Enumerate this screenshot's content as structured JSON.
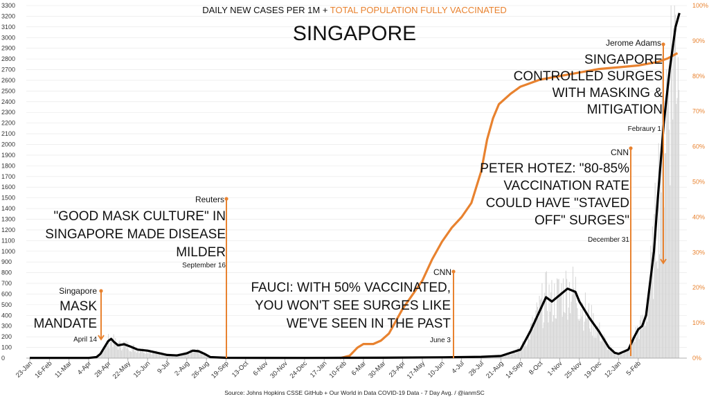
{
  "chart_data": {
    "type": "line",
    "title": "SINGAPORE",
    "subtitle_part1": "DAILY NEW CASES PER 1M + ",
    "subtitle_part2": "TOTAL POPULATION FULLY VACCINATED",
    "source": "Source: Johns Hopkins CSSE GitHub  + Our World in Data COVID-19 Data - 7 Day Avg. / @ianmSC",
    "y_left": {
      "min": 0,
      "max": 3300,
      "ticks": [
        0,
        100,
        200,
        300,
        400,
        500,
        600,
        700,
        800,
        900,
        1000,
        1100,
        1200,
        1300,
        1400,
        1500,
        1600,
        1700,
        1800,
        1900,
        2000,
        2100,
        2200,
        2300,
        2400,
        2500,
        2600,
        2700,
        2800,
        2900,
        3000,
        3100,
        3200,
        3300
      ]
    },
    "y_right": {
      "min": 0,
      "max": 100,
      "ticks": [
        "0%",
        "10%",
        "20%",
        "30%",
        "40%",
        "50%",
        "60%",
        "70%",
        "80%",
        "90%",
        "100%"
      ]
    },
    "x_ticks": [
      "23-Jan",
      "16-Feb",
      "11-Mar",
      "4-Apr",
      "28-Apr",
      "22-May",
      "15-Jun",
      "9-Jul",
      "2-Aug",
      "26-Aug",
      "19-Sep",
      "13-Oct",
      "6-Nov",
      "30-Nov",
      "24-Dec",
      "17-Jan",
      "10-Feb",
      "6-Mar",
      "30-Mar",
      "23-Apr",
      "17-May",
      "10-Jun",
      "4-Jul",
      "28-Jul",
      "21-Aug",
      "14-Sep",
      "8-Oct",
      "1-Nov",
      "25-Nov",
      "19-Dec",
      "12-Jan",
      "5-Feb"
    ],
    "colors": {
      "cases": "#000000",
      "vaccinated": "#e8822f",
      "bars": "#d4d4d4",
      "grid": "#e6e6e6"
    },
    "series": [
      {
        "name": "Daily new cases per 1M",
        "axis": "left",
        "points": [
          [
            0,
            2
          ],
          [
            3,
            2
          ],
          [
            3.4,
            10
          ],
          [
            3.6,
            40
          ],
          [
            3.8,
            100
          ],
          [
            4,
            160
          ],
          [
            4.15,
            180
          ],
          [
            4.3,
            150
          ],
          [
            4.5,
            120
          ],
          [
            4.8,
            130
          ],
          [
            5.1,
            110
          ],
          [
            5.5,
            80
          ],
          [
            6,
            70
          ],
          [
            6.5,
            50
          ],
          [
            7,
            30
          ],
          [
            7.5,
            25
          ],
          [
            8,
            45
          ],
          [
            8.3,
            70
          ],
          [
            8.6,
            65
          ],
          [
            8.9,
            40
          ],
          [
            9.2,
            10
          ],
          [
            10,
            3
          ],
          [
            14,
            2
          ],
          [
            16,
            3
          ],
          [
            18,
            4
          ],
          [
            21,
            8
          ],
          [
            22,
            10
          ],
          [
            23,
            12
          ],
          [
            24,
            20
          ],
          [
            25,
            80
          ],
          [
            25.5,
            250
          ],
          [
            26,
            450
          ],
          [
            26.3,
            570
          ],
          [
            26.6,
            530
          ],
          [
            27,
            590
          ],
          [
            27.4,
            650
          ],
          [
            27.8,
            620
          ],
          [
            28,
            530
          ],
          [
            28.5,
            380
          ],
          [
            29,
            250
          ],
          [
            29.5,
            100
          ],
          [
            29.8,
            50
          ],
          [
            30,
            40
          ],
          [
            30.5,
            80
          ],
          [
            30.8,
            200
          ],
          [
            31,
            270
          ],
          [
            31.2,
            300
          ],
          [
            31.4,
            400
          ],
          [
            31.6,
            700
          ],
          [
            31.8,
            1000
          ],
          [
            32,
            1500
          ],
          [
            32.3,
            2200
          ],
          [
            32.6,
            2700
          ],
          [
            32.9,
            3100
          ],
          [
            33.1,
            3230
          ]
        ]
      },
      {
        "name": "Total population fully vaccinated",
        "axis": "right",
        "points": [
          [
            15.8,
            0
          ],
          [
            16.3,
            0.7
          ],
          [
            16.7,
            3
          ],
          [
            17,
            4
          ],
          [
            17.5,
            4
          ],
          [
            17.9,
            5
          ],
          [
            18.3,
            7
          ],
          [
            18.6,
            10
          ],
          [
            19,
            14
          ],
          [
            19.5,
            18
          ],
          [
            20,
            22
          ],
          [
            20.5,
            28
          ],
          [
            21,
            33
          ],
          [
            21.5,
            37
          ],
          [
            22,
            40
          ],
          [
            22.5,
            44
          ],
          [
            23,
            53
          ],
          [
            23.3,
            62
          ],
          [
            23.6,
            68
          ],
          [
            23.9,
            72
          ],
          [
            24.5,
            75
          ],
          [
            25,
            77
          ],
          [
            25.5,
            78
          ],
          [
            26,
            79
          ],
          [
            27,
            80
          ],
          [
            28,
            81
          ],
          [
            29,
            82
          ],
          [
            30,
            82.5
          ],
          [
            31,
            83
          ],
          [
            32,
            84
          ],
          [
            32.5,
            85
          ],
          [
            33,
            86.5
          ]
        ]
      }
    ],
    "annotations": [
      {
        "key": "mask",
        "source_label": "Singapore",
        "headline": [
          "MASK",
          "MANDATE"
        ],
        "date": "April 14"
      },
      {
        "key": "reuters",
        "source_label": "Reuters",
        "headline": [
          "\"GOOD MASK CULTURE\" IN",
          "SINGAPORE MADE DISEASE",
          "MILDER"
        ],
        "date": "September 16"
      },
      {
        "key": "fauci",
        "source_label": "CNN",
        "headline": [
          "FAUCI: WITH 50% VACCINATED,",
          "YOU WON'T SEE SURGES LIKE",
          "WE'VE SEEN IN THE PAST"
        ],
        "date": "June 3"
      },
      {
        "key": "hotez",
        "source_label": "CNN",
        "headline": [
          "PETER HOTEZ: \"80-85%",
          "VACCINATION RATE",
          "COULD HAVE \"STAVED",
          "OFF\" SURGES\""
        ],
        "date": "December 31"
      },
      {
        "key": "adams",
        "source_label": "Jerome Adams",
        "headline": [
          "SINGAPORE",
          "CONTROLLED SURGES",
          "WITH MASKING &",
          "MITIGATION"
        ],
        "date": "Febraury 1"
      }
    ]
  }
}
